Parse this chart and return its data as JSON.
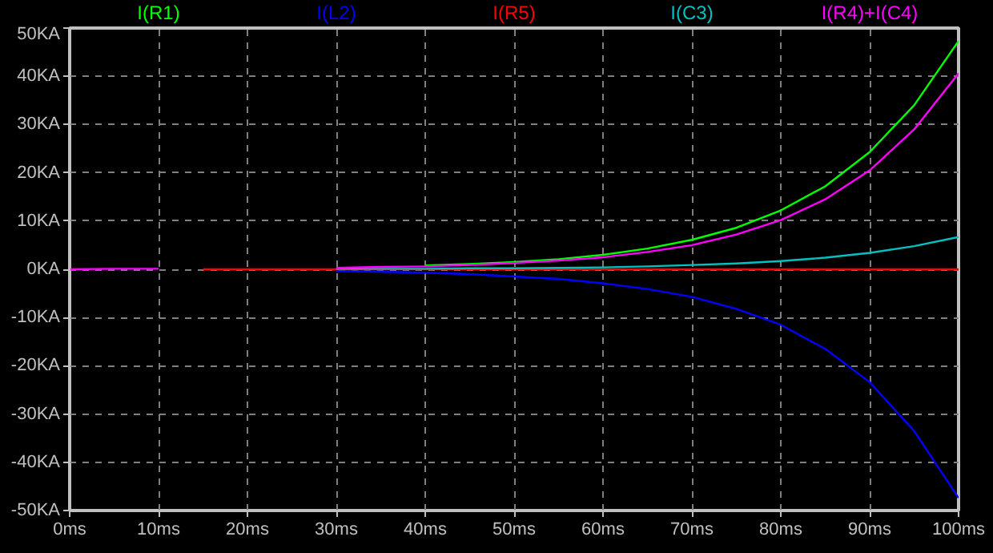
{
  "chart_data": {
    "type": "line",
    "grid": true,
    "x": [
      0,
      5,
      10,
      15,
      20,
      25,
      30,
      35,
      40,
      45,
      50,
      55,
      60,
      65,
      70,
      75,
      80,
      85,
      90,
      95,
      100
    ],
    "xlim": [
      0,
      100
    ],
    "xticks": [
      {
        "value": 0,
        "label": "0ms"
      },
      {
        "value": 10,
        "label": "10ms"
      },
      {
        "value": 20,
        "label": "20ms"
      },
      {
        "value": 30,
        "label": "30ms"
      },
      {
        "value": 40,
        "label": "40ms"
      },
      {
        "value": 50,
        "label": "50ms"
      },
      {
        "value": 60,
        "label": "60ms"
      },
      {
        "value": 70,
        "label": "70ms"
      },
      {
        "value": 80,
        "label": "80ms"
      },
      {
        "value": 90,
        "label": "90ms"
      },
      {
        "value": 100,
        "label": "100ms"
      }
    ],
    "ylim": [
      -50,
      50
    ],
    "yticks": [
      {
        "value": -50,
        "label": "-50KA"
      },
      {
        "value": -40,
        "label": "-40KA"
      },
      {
        "value": -30,
        "label": "-30KA"
      },
      {
        "value": -20,
        "label": "-20KA"
      },
      {
        "value": -10,
        "label": "-10KA"
      },
      {
        "value": 0,
        "label": "0KA"
      },
      {
        "value": 10,
        "label": "10KA"
      },
      {
        "value": 20,
        "label": "20KA"
      },
      {
        "value": 30,
        "label": "30KA"
      },
      {
        "value": 40,
        "label": "40KA"
      },
      {
        "value": 50,
        "label": "50KA"
      }
    ],
    "series": [
      {
        "name": "I(R1)",
        "color": "#00ff00",
        "values": [
          null,
          null,
          null,
          null,
          null,
          null,
          null,
          null,
          0.8,
          1.1,
          1.5,
          2.1,
          3.0,
          4.3,
          6.1,
          8.6,
          12.2,
          17.2,
          24.3,
          34,
          47.3
        ]
      },
      {
        "name": "I(L2)",
        "color": "#0000ff",
        "values": [
          null,
          null,
          null,
          null,
          null,
          null,
          -0.4,
          -0.5,
          -0.7,
          -1.0,
          -1.5,
          -2.0,
          -2.9,
          -4.1,
          -5.7,
          -8.2,
          -11.5,
          -16.5,
          -23.4,
          -33.5,
          -47.4
        ]
      },
      {
        "name": "I(R5)",
        "color": "#ff0000",
        "values": [
          null,
          null,
          null,
          0,
          0,
          0,
          0,
          0,
          0,
          0,
          0,
          0,
          0,
          0,
          0,
          0,
          0,
          0,
          0,
          0,
          0
        ]
      },
      {
        "name": "I(C3)",
        "color": "#00c0c0",
        "values": [
          null,
          null,
          null,
          null,
          null,
          null,
          0.1,
          0.1,
          0.1,
          0.2,
          0.2,
          0.3,
          0.4,
          0.6,
          0.9,
          1.2,
          1.7,
          2.4,
          3.4,
          4.8,
          6.7
        ]
      },
      {
        "name": "I(R4)+I(C4)",
        "color": "#ff00ff",
        "values": [
          0,
          0.1,
          0.1,
          null,
          null,
          null,
          0.3,
          0.5,
          0.6,
          0.9,
          1.3,
          1.8,
          2.5,
          3.6,
          5.0,
          7.2,
          10.2,
          14.5,
          20.5,
          29,
          40.6
        ]
      }
    ]
  }
}
